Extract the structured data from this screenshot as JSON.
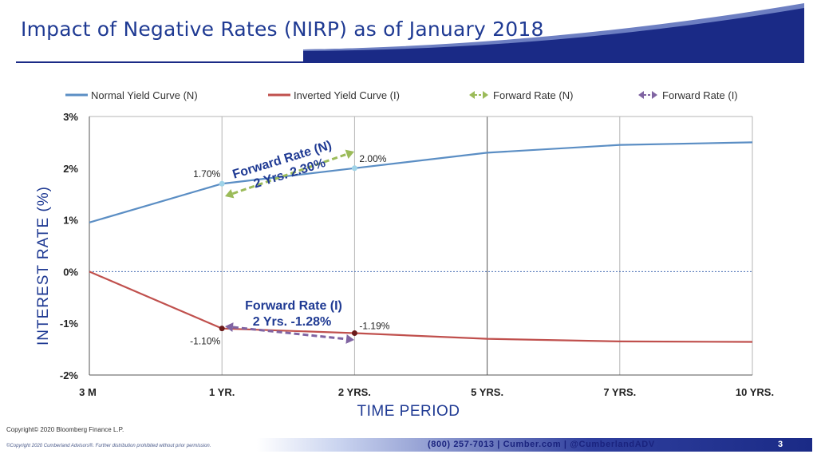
{
  "slide": {
    "title": "Impact of Negative Rates (NIRP) as of January 2018",
    "copyright_line1": "Copyright© 2020 Bloomberg Finance L.P.",
    "copyright_line2": "©Copyright 2020 Cumberland Advisors®. Further distribution prohibited without prior permission.",
    "footer_contact": "(800) 257-7013  |  Cumber.com  |  @CumberlandADV",
    "page_number": "3"
  },
  "colors": {
    "normal": "#5b8ec4",
    "inverted": "#c0504d",
    "forward_n": "#9bbb59",
    "forward_i": "#8064a2",
    "title": "#1f3a93"
  },
  "chart_data": {
    "type": "line",
    "title": "",
    "xlabel": "TIME PERIOD",
    "ylabel": "INTEREST RATE (%)",
    "categories": [
      "3 M",
      "1 YR.",
      "2 YRS.",
      "5 YRS.",
      "7 YRS.",
      "10 YRS."
    ],
    "ylim": [
      -2,
      3
    ],
    "yticks": [
      -2,
      -1,
      0,
      1,
      2,
      3
    ],
    "ytick_labels": [
      "-2%",
      "-1%",
      "0%",
      "1%",
      "2%",
      "3%"
    ],
    "series": [
      {
        "name": "Normal Yield Curve (N)",
        "values": [
          0.95,
          1.7,
          2.0,
          2.3,
          2.45,
          2.5
        ]
      },
      {
        "name": "Inverted Yield Curve (I)",
        "values": [
          0.0,
          -1.1,
          -1.19,
          -1.3,
          -1.35,
          -1.36
        ]
      }
    ],
    "legend_forward_n": "Forward Rate (N)",
    "legend_forward_i": "Forward Rate (I)",
    "legend_position": "top",
    "data_labels": [
      {
        "series": 0,
        "index": 1,
        "text": "1.70%"
      },
      {
        "series": 0,
        "index": 2,
        "text": "2.00%"
      },
      {
        "series": 1,
        "index": 1,
        "text": "-1.10%"
      },
      {
        "series": 1,
        "index": 2,
        "text": "-1.19%"
      }
    ],
    "annotations": {
      "forward_n": {
        "line1": "Forward Rate (N)",
        "line2": "2 Yrs. 2.30%"
      },
      "forward_i": {
        "line1": "Forward Rate (I)",
        "line2": "2 Yrs. -1.28%"
      }
    }
  }
}
